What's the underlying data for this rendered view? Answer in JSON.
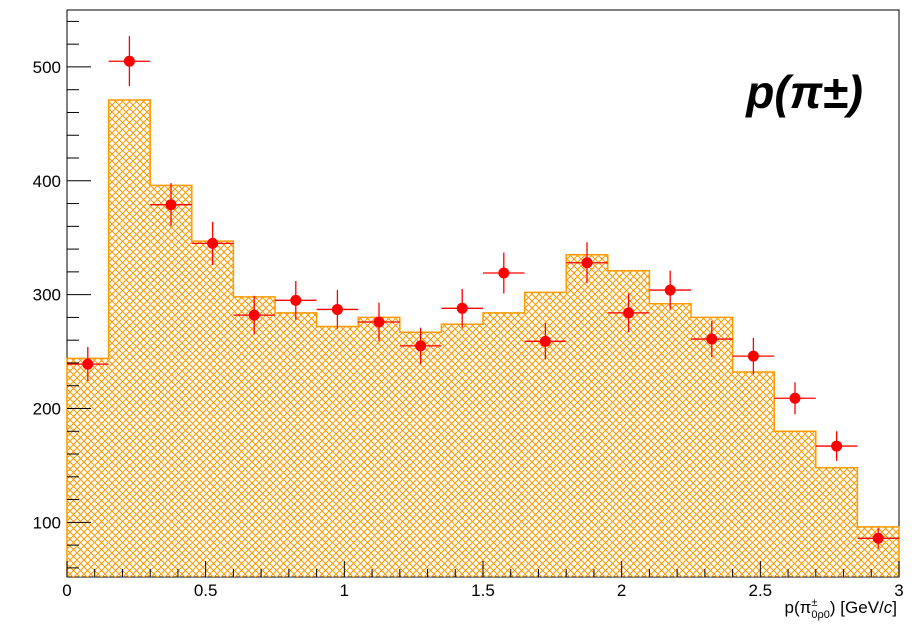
{
  "chart_data": {
    "type": "bar",
    "annotation": "p(π±)",
    "xlabel": "p(π±0ρ0) [GeV/c]",
    "xlim": [
      0,
      3
    ],
    "ylim": [
      52,
      550
    ],
    "x_ticks": [
      "0",
      "0.5",
      "1",
      "1.5",
      "2",
      "2.5",
      "3"
    ],
    "y_ticks": [
      "100",
      "200",
      "300",
      "400",
      "500"
    ],
    "bin_width": 0.15,
    "series": [
      {
        "kind": "histogram",
        "color": "#ff9900",
        "fill": "crosshatch",
        "bin_edges": [
          0,
          0.15,
          0.3,
          0.45,
          0.6,
          0.75,
          0.9,
          1.05,
          1.2,
          1.35,
          1.5,
          1.65,
          1.8,
          1.95,
          2.1,
          2.25,
          2.4,
          2.55,
          2.7,
          2.85,
          3.0
        ],
        "values": [
          244,
          471,
          396,
          347,
          298,
          284,
          272,
          280,
          267,
          274,
          284,
          302,
          335,
          321,
          292,
          280,
          232,
          180,
          148,
          96
        ]
      },
      {
        "kind": "points",
        "color": "#ff0000",
        "x": [
          0.075,
          0.225,
          0.375,
          0.525,
          0.675,
          0.825,
          0.975,
          1.125,
          1.275,
          1.425,
          1.575,
          1.725,
          1.875,
          2.025,
          2.175,
          2.325,
          2.475,
          2.625,
          2.775,
          2.925
        ],
        "y": [
          239,
          505,
          379,
          345,
          282,
          295,
          287,
          276,
          255,
          288,
          319,
          259,
          328,
          284,
          304,
          261,
          246,
          209,
          167,
          86
        ],
        "yerr": [
          15,
          22,
          19,
          19,
          17,
          17,
          17,
          17,
          16,
          17,
          18,
          16,
          18,
          17,
          17,
          16,
          16,
          14,
          13,
          9
        ]
      }
    ]
  }
}
